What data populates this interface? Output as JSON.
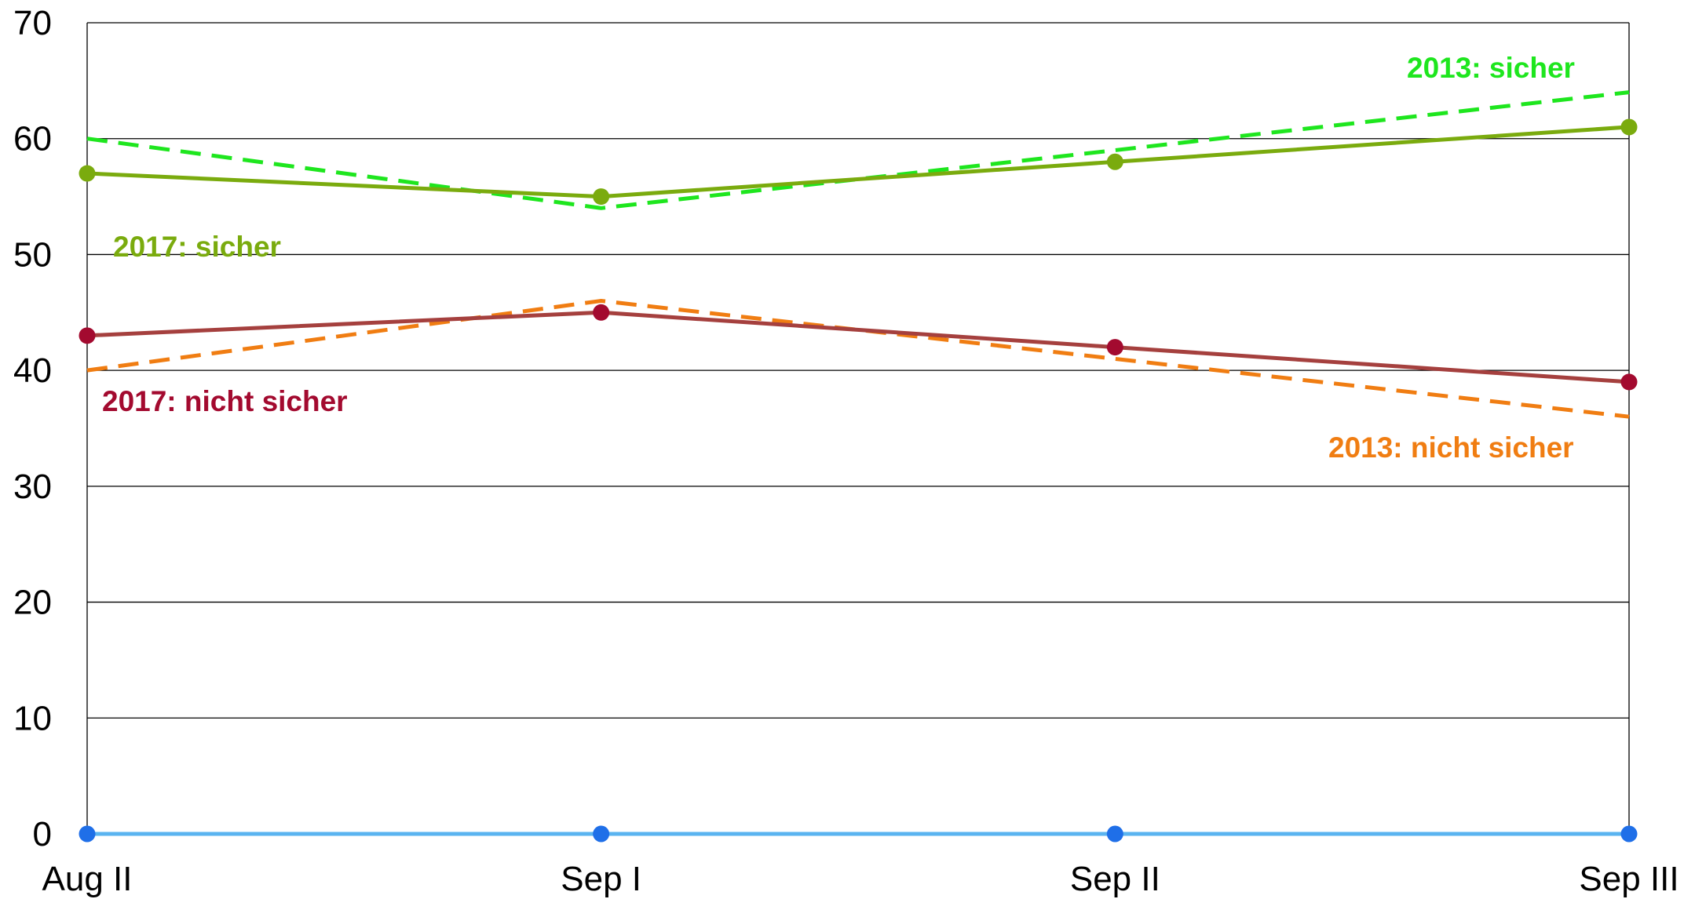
{
  "chart_data": {
    "type": "line",
    "categories": [
      "Aug II",
      "Sep I",
      "Sep II",
      "Sep III"
    ],
    "ylim": [
      0,
      70
    ],
    "yticks": [
      0,
      10,
      20,
      30,
      40,
      50,
      60,
      70
    ],
    "grid": true,
    "series": [
      {
        "key": "s2013_sicher",
        "name": "2013: sicher",
        "values": [
          60,
          54,
          59,
          64
        ],
        "color": "#1ee61e",
        "dashed": true,
        "markers": false
      },
      {
        "key": "s2017_sicher",
        "name": "2017: sicher",
        "values": [
          57,
          55,
          58,
          61
        ],
        "color": "#7aab0e",
        "dashed": false,
        "markers": true
      },
      {
        "key": "s2013_nicht",
        "name": "2013: nicht sicher",
        "values": [
          40,
          46,
          41,
          36
        ],
        "color": "#f07d12",
        "dashed": true,
        "markers": false
      },
      {
        "key": "s2017_nicht",
        "name": "2017: nicht sicher",
        "values": [
          43,
          45,
          42,
          39
        ],
        "color": "#a31535",
        "markers_color": "#a30a2f",
        "line_color": "#a5403e",
        "dashed": false,
        "markers": true
      },
      {
        "key": "s_zero_dashed",
        "name": "",
        "values": [
          0,
          0,
          0,
          0
        ],
        "color": "#1f5fe0",
        "dashed": true,
        "markers": false
      },
      {
        "key": "s_zero_solid",
        "name": "",
        "values": [
          0,
          0,
          0,
          0
        ],
        "color": "#5ab4f0",
        "dashed": false,
        "markers": true,
        "markers_color": "#1f6fe8"
      }
    ]
  }
}
